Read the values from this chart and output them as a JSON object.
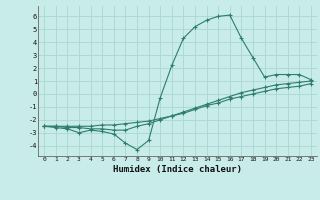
{
  "x": [
    0,
    1,
    2,
    3,
    4,
    5,
    6,
    7,
    8,
    9,
    10,
    11,
    12,
    13,
    14,
    15,
    16,
    17,
    18,
    19,
    20,
    21,
    22,
    23
  ],
  "line1": [
    -2.5,
    -2.6,
    -2.7,
    -3.0,
    -2.8,
    -2.9,
    -3.1,
    -3.8,
    -4.3,
    -3.6,
    -0.3,
    2.2,
    4.3,
    5.2,
    5.7,
    6.0,
    6.1,
    4.3,
    2.8,
    1.3,
    1.5,
    1.5,
    1.5,
    1.1
  ],
  "line2": [
    -2.5,
    -2.5,
    -2.6,
    -2.6,
    -2.7,
    -2.7,
    -2.8,
    -2.8,
    -2.5,
    -2.3,
    -2.0,
    -1.7,
    -1.4,
    -1.1,
    -0.8,
    -0.5,
    -0.2,
    0.1,
    0.3,
    0.5,
    0.7,
    0.8,
    0.9,
    1.0
  ],
  "line3": [
    -2.5,
    -2.5,
    -2.5,
    -2.5,
    -2.5,
    -2.4,
    -2.4,
    -2.3,
    -2.2,
    -2.1,
    -1.9,
    -1.7,
    -1.5,
    -1.2,
    -0.9,
    -0.7,
    -0.4,
    -0.2,
    0.0,
    0.2,
    0.4,
    0.5,
    0.6,
    0.8
  ],
  "color": "#2e7d6e",
  "bg_color": "#c8ecea",
  "grid_color": "#aad6d0",
  "xlabel": "Humidex (Indice chaleur)",
  "ylim": [
    -4.8,
    6.8
  ],
  "xlim": [
    -0.5,
    23.5
  ],
  "yticks": [
    -4,
    -3,
    -2,
    -1,
    0,
    1,
    2,
    3,
    4,
    5,
    6
  ],
  "xticks": [
    0,
    1,
    2,
    3,
    4,
    5,
    6,
    7,
    8,
    9,
    10,
    11,
    12,
    13,
    14,
    15,
    16,
    17,
    18,
    19,
    20,
    21,
    22,
    23
  ]
}
